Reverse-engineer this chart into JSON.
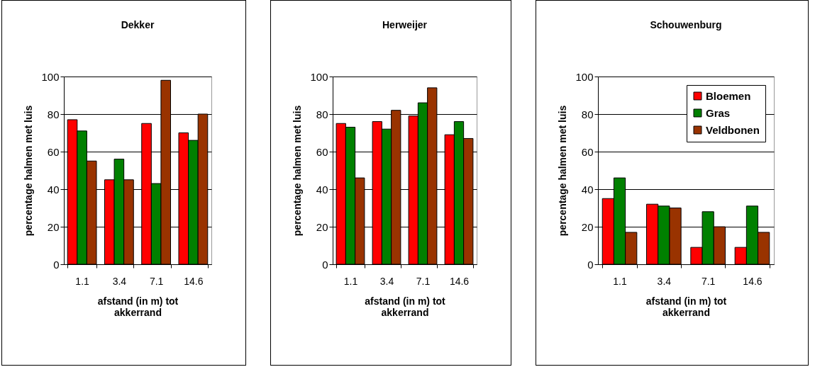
{
  "chart_data": [
    {
      "type": "bar",
      "title": "Dekker",
      "xlabel": "afstand (in m) tot akkerrand",
      "ylabel": "percentage halmen met luis",
      "categories": [
        "1.1",
        "3.4",
        "7.1",
        "14.6"
      ],
      "ylim": [
        0,
        100
      ],
      "yticks": [
        0,
        20,
        40,
        60,
        80,
        100
      ],
      "grid": "y",
      "legend": false,
      "series": [
        {
          "color": "#ff0000",
          "values": [
            77,
            45,
            75,
            70
          ]
        },
        {
          "color": "#008000",
          "values": [
            71,
            56,
            43,
            66
          ]
        },
        {
          "color": "#993300",
          "values": [
            55,
            45,
            98,
            80
          ]
        }
      ]
    },
    {
      "type": "bar",
      "title": "Herweijer",
      "xlabel": "afstand (in m) tot akkerrand",
      "ylabel": "percentage halmen met luis",
      "categories": [
        "1.1",
        "3.4",
        "7.1",
        "14.6"
      ],
      "ylim": [
        0,
        100
      ],
      "yticks": [
        0,
        20,
        40,
        60,
        80,
        100
      ],
      "grid": "y",
      "legend": false,
      "series": [
        {
          "color": "#ff0000",
          "values": [
            75,
            76,
            79,
            69
          ]
        },
        {
          "color": "#008000",
          "values": [
            73,
            72,
            86,
            76
          ]
        },
        {
          "color": "#993300",
          "values": [
            46,
            82,
            94,
            67
          ]
        }
      ]
    },
    {
      "type": "bar",
      "title": "Schouwenburg",
      "xlabel": "afstand (in m) tot akkerrand",
      "ylabel": "percentage halmen met luis",
      "categories": [
        "1.1",
        "3.4",
        "7.1",
        "14.6"
      ],
      "ylim": [
        0,
        100
      ],
      "yticks": [
        0,
        20,
        40,
        60,
        80,
        100
      ],
      "grid": "y",
      "legend": "top right",
      "series": [
        {
          "name": "Bloemen",
          "color": "#ff0000",
          "values": [
            35,
            32,
            9,
            9
          ]
        },
        {
          "name": "Gras",
          "color": "#008000",
          "values": [
            46,
            31,
            28,
            31
          ]
        },
        {
          "name": "Veldbonen",
          "color": "#993300",
          "values": [
            17,
            30,
            20,
            17
          ]
        }
      ]
    }
  ]
}
